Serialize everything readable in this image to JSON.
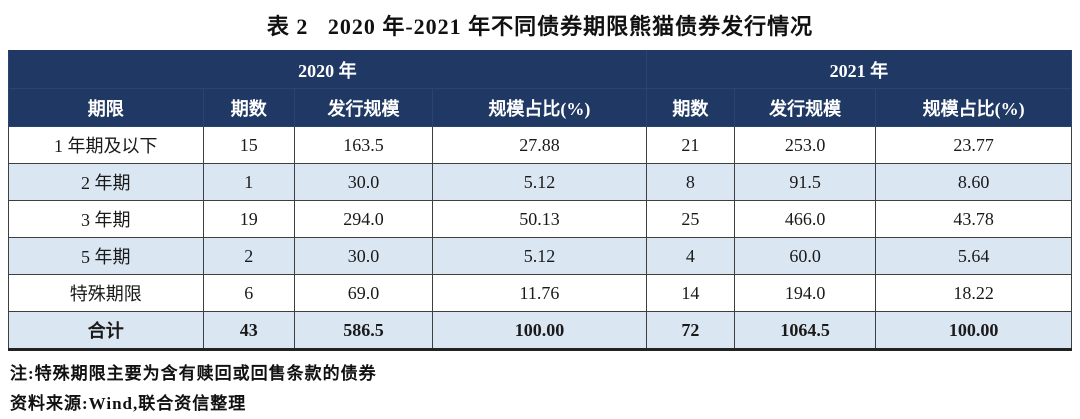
{
  "title": "表 2   2020 年-2021 年不同债券期限熊猫债券发行情况",
  "colors": {
    "header_bg": "#1f3864",
    "shaded_row_bg": "#dbe6f3",
    "body_text": "#1a1a1a"
  },
  "table": {
    "group_headers": {
      "year_2020": "2020 年",
      "year_2021": "2021 年"
    },
    "column_headers": [
      "期限",
      "期数",
      "发行规模",
      "规模占比(%)",
      "期数",
      "发行规模",
      "规模占比(%)"
    ],
    "rows": [
      {
        "cells": [
          "1 年期及以下",
          "15",
          "163.5",
          "27.88",
          "21",
          "253.0",
          "23.77"
        ],
        "total": false
      },
      {
        "cells": [
          "2 年期",
          "1",
          "30.0",
          "5.12",
          "8",
          "91.5",
          "8.60"
        ],
        "total": false
      },
      {
        "cells": [
          "3 年期",
          "19",
          "294.0",
          "50.13",
          "25",
          "466.0",
          "43.78"
        ],
        "total": false
      },
      {
        "cells": [
          "5 年期",
          "2",
          "30.0",
          "5.12",
          "4",
          "60.0",
          "5.64"
        ],
        "total": false
      },
      {
        "cells": [
          "特殊期限",
          "6",
          "69.0",
          "11.76",
          "14",
          "194.0",
          "18.22"
        ],
        "total": false
      },
      {
        "cells": [
          "合计",
          "43",
          "586.5",
          "100.00",
          "72",
          "1064.5",
          "100.00"
        ],
        "total": true
      }
    ]
  },
  "notes": {
    "note": "注:特殊期限主要为含有赎回或回售条款的债券",
    "source": "资料来源:Wind,联合资信整理"
  }
}
